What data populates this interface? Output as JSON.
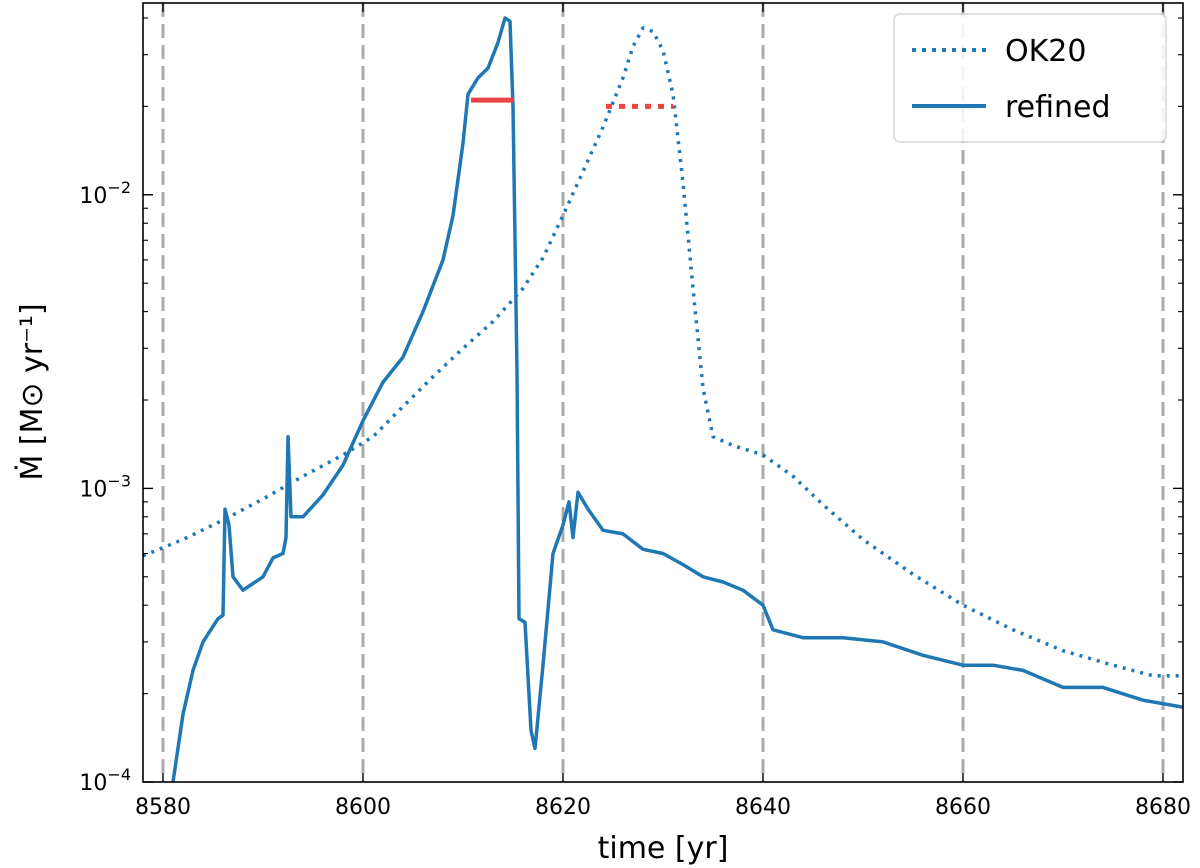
{
  "chart_data": {
    "type": "line",
    "xlabel": "time [yr]",
    "ylabel": "Ṁ [M⊙ yr⁻¹]",
    "xlim": [
      8578,
      8682
    ],
    "ylim": [
      0.0001,
      0.045
    ],
    "yscale": "log",
    "x_ticks": [
      8580,
      8600,
      8620,
      8640,
      8660,
      8680
    ],
    "y_ticks": [
      {
        "value": 0.0001,
        "base": "10",
        "exp": "−4"
      },
      {
        "value": 0.001,
        "base": "10",
        "exp": "−3"
      },
      {
        "value": 0.01,
        "base": "10",
        "exp": "−2"
      }
    ],
    "vertical_lines": [
      8580,
      8600,
      8620,
      8640,
      8660,
      8680
    ],
    "legend_position": "top-right",
    "colors": {
      "series": "#1f77b4",
      "marker": "#ee4444",
      "vline": "#aaaaaa"
    },
    "series": [
      {
        "name": "OK20",
        "style": "dotted",
        "points": [
          [
            8578,
            0.00059
          ],
          [
            8582,
            0.00067
          ],
          [
            8586,
            0.00078
          ],
          [
            8590,
            0.00092
          ],
          [
            8594,
            0.0011
          ],
          [
            8598,
            0.0013
          ],
          [
            8601,
            0.0015
          ],
          [
            8604,
            0.0019
          ],
          [
            8607,
            0.0024
          ],
          [
            8610,
            0.003
          ],
          [
            8613,
            0.0037
          ],
          [
            8616,
            0.0048
          ],
          [
            8618,
            0.0061
          ],
          [
            8620,
            0.0085
          ],
          [
            8622,
            0.012
          ],
          [
            8624,
            0.017
          ],
          [
            8626,
            0.025
          ],
          [
            8627,
            0.032
          ],
          [
            8628,
            0.037
          ],
          [
            8629,
            0.036
          ],
          [
            8630,
            0.031
          ],
          [
            8631,
            0.022
          ],
          [
            8632,
            0.011
          ],
          [
            8633,
            0.0048
          ],
          [
            8634,
            0.0022
          ],
          [
            8635,
            0.0015
          ],
          [
            8637,
            0.0014
          ],
          [
            8640,
            0.0013
          ],
          [
            8643,
            0.0011
          ],
          [
            8646,
            0.00088
          ],
          [
            8650,
            0.00067
          ],
          [
            8655,
            0.00051
          ],
          [
            8660,
            0.0004
          ],
          [
            8665,
            0.00033
          ],
          [
            8670,
            0.00028
          ],
          [
            8675,
            0.00025
          ],
          [
            8679,
            0.00023
          ],
          [
            8682,
            0.00023
          ]
        ]
      },
      {
        "name": "refined",
        "style": "solid",
        "points": [
          [
            8581,
            0.0001
          ],
          [
            8582,
            0.00017
          ],
          [
            8583,
            0.00024
          ],
          [
            8584,
            0.0003
          ],
          [
            8585.5,
            0.00036
          ],
          [
            8586,
            0.00037
          ],
          [
            8586.2,
            0.00085
          ],
          [
            8586.6,
            0.00075
          ],
          [
            8587,
            0.0005
          ],
          [
            8588,
            0.00045
          ],
          [
            8590,
            0.0005
          ],
          [
            8591,
            0.00058
          ],
          [
            8592,
            0.0006
          ],
          [
            8592.3,
            0.00068
          ],
          [
            8592.5,
            0.0015
          ],
          [
            8592.8,
            0.0008
          ],
          [
            8594,
            0.0008
          ],
          [
            8596,
            0.00095
          ],
          [
            8598,
            0.0012
          ],
          [
            8600,
            0.0017
          ],
          [
            8602,
            0.0023
          ],
          [
            8604,
            0.0028
          ],
          [
            8606,
            0.004
          ],
          [
            8608,
            0.006
          ],
          [
            8609,
            0.0085
          ],
          [
            8610,
            0.015
          ],
          [
            8610.5,
            0.022
          ],
          [
            8611.5,
            0.025
          ],
          [
            8612.5,
            0.027
          ],
          [
            8613.5,
            0.033
          ],
          [
            8614.2,
            0.04
          ],
          [
            8614.7,
            0.039
          ],
          [
            8615,
            0.02
          ],
          [
            8615.4,
            0.0025
          ],
          [
            8615.6,
            0.00036
          ],
          [
            8616.2,
            0.00035
          ],
          [
            8616.8,
            0.00015
          ],
          [
            8617.2,
            0.00013
          ],
          [
            8618,
            0.00025
          ],
          [
            8619,
            0.0006
          ],
          [
            8620,
            0.00075
          ],
          [
            8620.6,
            0.0009
          ],
          [
            8621,
            0.00068
          ],
          [
            8621.5,
            0.00097
          ],
          [
            8622.5,
            0.00085
          ],
          [
            8624,
            0.00072
          ],
          [
            8626,
            0.0007
          ],
          [
            8628,
            0.00062
          ],
          [
            8630,
            0.0006
          ],
          [
            8632,
            0.00055
          ],
          [
            8634,
            0.0005
          ],
          [
            8636,
            0.00048
          ],
          [
            8638,
            0.00045
          ],
          [
            8640,
            0.0004
          ],
          [
            8641,
            0.00033
          ],
          [
            8644,
            0.00031
          ],
          [
            8648,
            0.00031
          ],
          [
            8652,
            0.0003
          ],
          [
            8656,
            0.00027
          ],
          [
            8660,
            0.00025
          ],
          [
            8663,
            0.00025
          ],
          [
            8666,
            0.00024
          ],
          [
            8670,
            0.00021
          ],
          [
            8674,
            0.00021
          ],
          [
            8678,
            0.00019
          ],
          [
            8682,
            0.00018
          ]
        ]
      }
    ],
    "markers": [
      {
        "x0": 8610.8,
        "x1": 8615.0,
        "y": 0.021,
        "style": "solid"
      },
      {
        "x0": 8624.3,
        "x1": 8631.0,
        "y": 0.02,
        "style": "dotted"
      }
    ]
  }
}
